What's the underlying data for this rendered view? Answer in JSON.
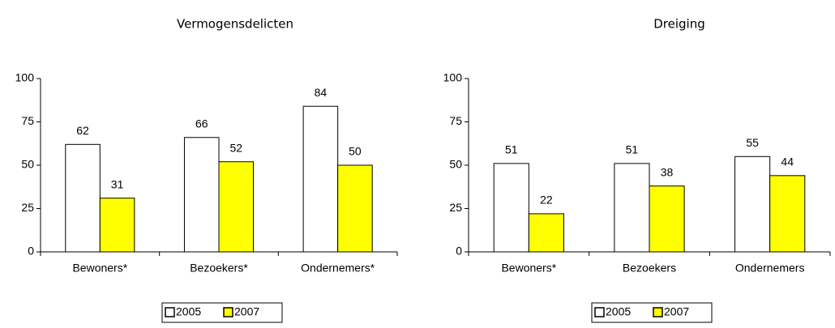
{
  "chart_data": [
    {
      "type": "bar",
      "title": "Vermogensdelicten",
      "categories": [
        "Bewoners*",
        "Bezoekers*",
        "Ondernemers*"
      ],
      "series": [
        {
          "name": "2005",
          "color": "#ffffff",
          "values": [
            62,
            66,
            84
          ]
        },
        {
          "name": "2007",
          "color": "#ffff00",
          "values": [
            31,
            52,
            50
          ]
        }
      ],
      "ylim": [
        0,
        100
      ],
      "yticks": [
        0,
        25,
        50,
        75,
        100
      ],
      "legend": "bottom"
    },
    {
      "type": "bar",
      "title": "Dreiging",
      "categories": [
        "Bewoners*",
        "Bezoekers",
        "Ondernemers"
      ],
      "series": [
        {
          "name": "2005",
          "color": "#ffffff",
          "values": [
            51,
            51,
            55
          ]
        },
        {
          "name": "2007",
          "color": "#ffff00",
          "values": [
            22,
            38,
            44
          ]
        }
      ],
      "ylim": [
        0,
        100
      ],
      "yticks": [
        0,
        25,
        50,
        75,
        100
      ],
      "legend": "bottom"
    }
  ]
}
